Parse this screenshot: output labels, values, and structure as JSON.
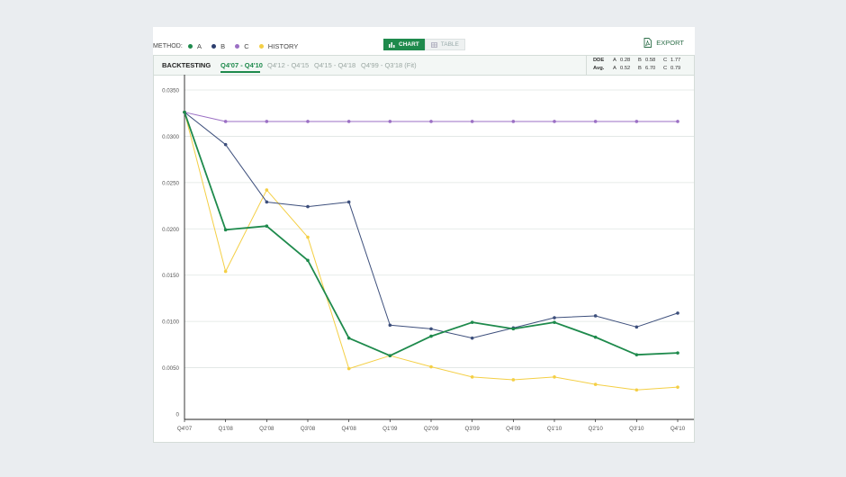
{
  "legend": {
    "label": "METHOD:",
    "items": [
      {
        "name": "A",
        "color": "#1e8a4c"
      },
      {
        "name": "B",
        "color": "#2c3e6e"
      },
      {
        "name": "C",
        "color": "#9b6fc4"
      },
      {
        "name": "HISTORY",
        "color": "#f4cf45"
      }
    ]
  },
  "view_toggle": {
    "chart_label": "CHART",
    "table_label": "TABLE",
    "active": "chart"
  },
  "export_label": "EXPORT",
  "tabs": {
    "section_label": "BACKTESTING",
    "items": [
      "Q4'07 - Q4'10",
      "Q4'12 - Q4'15",
      "Q4'15 - Q4'18",
      "Q4'99 - Q3'18 (Fit)"
    ],
    "active_index": 0
  },
  "stats": {
    "rows": [
      {
        "label": "DDE",
        "A": "0.28",
        "B": "0.58",
        "C": "1.77"
      },
      {
        "label": "Avg.",
        "A": "0.52",
        "B": "6.70",
        "C": "0.79"
      }
    ]
  },
  "chart_data": {
    "type": "line",
    "categories": [
      "Q4'07",
      "Q1'08",
      "Q2'08",
      "Q3'08",
      "Q4'08",
      "Q1'09",
      "Q2'09",
      "Q3'09",
      "Q4'09",
      "Q1'10",
      "Q2'10",
      "Q3'10",
      "Q4'10"
    ],
    "ylim": [
      0,
      0.035
    ],
    "yticks": [
      "0",
      "0.0050",
      "0.0100",
      "0.0150",
      "0.0200",
      "0.0250",
      "0.0300",
      "0.0350"
    ],
    "grid": true,
    "series": [
      {
        "name": "C",
        "color": "#9b6fc4",
        "width": 1.0,
        "values": [
          0.0326,
          0.0316,
          0.0316,
          0.0316,
          0.0316,
          0.0316,
          0.0316,
          0.0316,
          0.0316,
          0.0316,
          0.0316,
          0.0316,
          0.0316
        ]
      },
      {
        "name": "HISTORY",
        "color": "#f4cf45",
        "width": 1.0,
        "values": [
          0.0326,
          0.0154,
          0.0242,
          0.0191,
          0.0049,
          0.0063,
          0.0051,
          0.004,
          0.0037,
          0.004,
          0.0032,
          0.0026,
          0.0029
        ]
      },
      {
        "name": "B",
        "color": "#3d4f7c",
        "width": 1.0,
        "values": [
          0.0326,
          0.0291,
          0.0229,
          0.0224,
          0.0229,
          0.0096,
          0.0092,
          0.0082,
          0.0093,
          0.0104,
          0.0106,
          0.0094,
          0.0109
        ]
      },
      {
        "name": "A",
        "color": "#1e8a4c",
        "width": 1.8,
        "values": [
          0.0326,
          0.0199,
          0.0203,
          0.0166,
          0.0082,
          0.0063,
          0.0084,
          0.0099,
          0.0092,
          0.0099,
          0.0083,
          0.0064,
          0.0066
        ]
      }
    ]
  }
}
